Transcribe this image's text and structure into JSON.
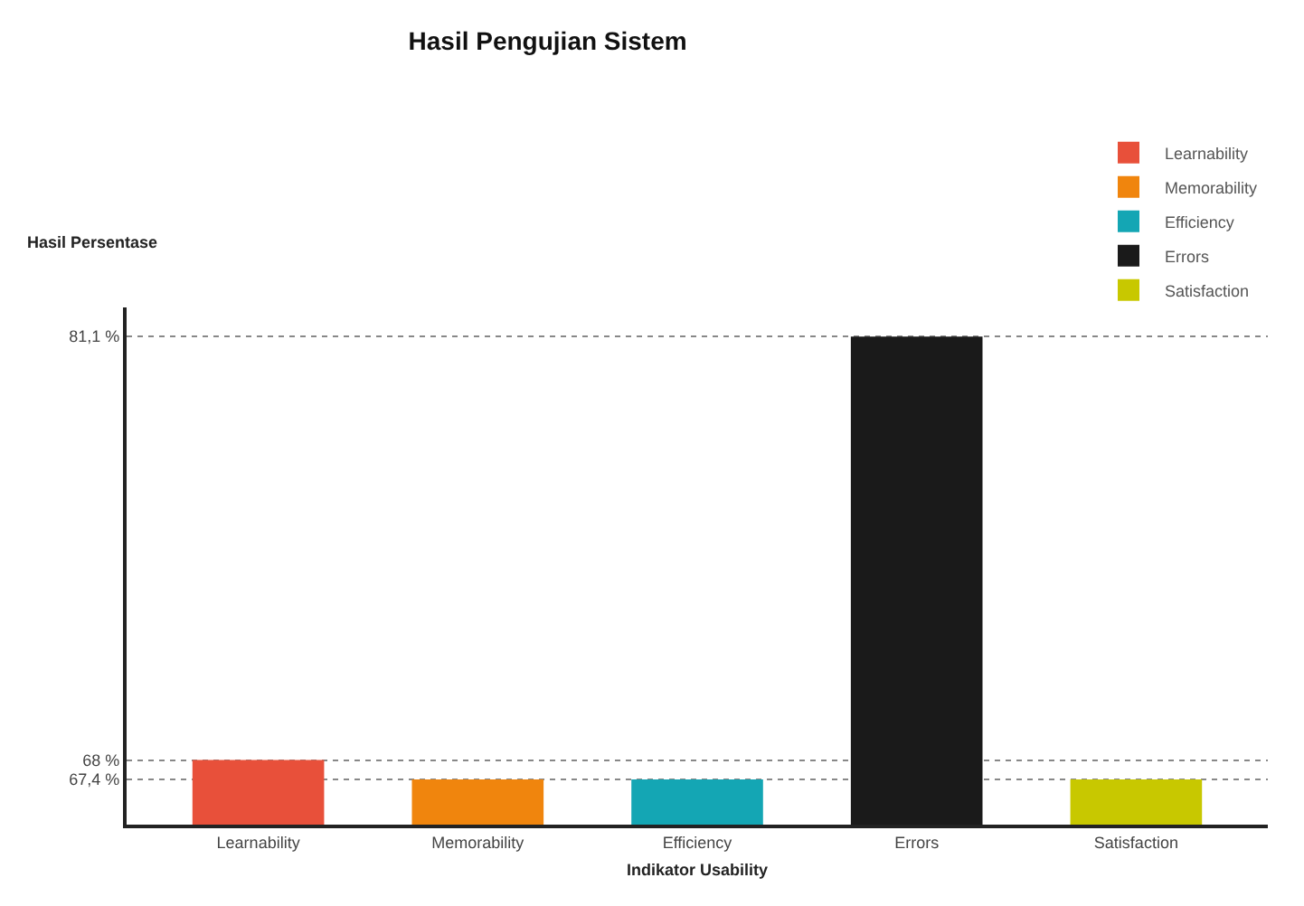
{
  "chart_data": {
    "type": "bar",
    "title": "Hasil Pengujian Sistem",
    "xlabel": "Indikator Usability",
    "ylabel": "Hasil Persentase",
    "categories": [
      "Learnability",
      "Memorability",
      "Efficiency",
      "Errors",
      "Satisfaction"
    ],
    "series": [
      {
        "name": "Learnability",
        "color": "#e8503a",
        "values": [
          68,
          null,
          null,
          null,
          null
        ]
      },
      {
        "name": "Memorability",
        "color": "#f0850d",
        "values": [
          null,
          67.4,
          null,
          null,
          null
        ]
      },
      {
        "name": "Efficiency",
        "color": "#14a6b4",
        "values": [
          null,
          null,
          67.4,
          null,
          null
        ]
      },
      {
        "name": "Errors",
        "color": "#1a1a1a",
        "values": [
          null,
          null,
          null,
          81.1,
          null
        ]
      },
      {
        "name": "Satisfaction",
        "color": "#c8c800",
        "values": [
          null,
          null,
          null,
          null,
          67.4
        ]
      }
    ],
    "ylim": [
      66,
      82
    ],
    "yticks": [
      {
        "value": 67.4,
        "label": "67,4 %"
      },
      {
        "value": 68,
        "label": "68 %"
      },
      {
        "value": 81.1,
        "label": "81,1 %"
      }
    ],
    "grid": "y",
    "legend": "top right"
  }
}
